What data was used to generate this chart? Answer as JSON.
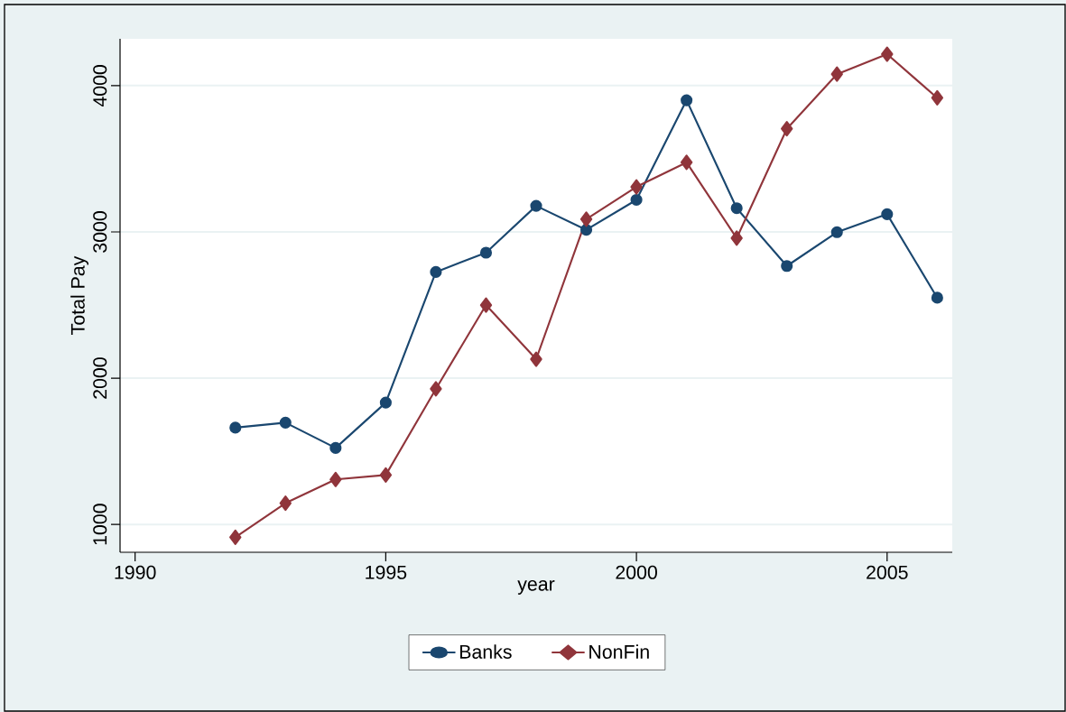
{
  "chart_data": {
    "type": "line",
    "xlabel": "year",
    "ylabel": "Total Pay",
    "x": [
      1992,
      1993,
      1994,
      1995,
      1996,
      1997,
      1998,
      1999,
      2000,
      2001,
      2002,
      2003,
      2004,
      2005,
      2006
    ],
    "series": [
      {
        "name": "Banks",
        "color": "#1a476f",
        "marker": "circle",
        "values": [
          1662,
          1696,
          1523,
          1833,
          2726,
          2858,
          3178,
          3014,
          3219,
          3900,
          3162,
          2767,
          2998,
          3121,
          2550
        ]
      },
      {
        "name": "NonFin",
        "color": "#90353b",
        "marker": "diamond",
        "values": [
          913,
          1146,
          1308,
          1338,
          1927,
          2500,
          2130,
          3087,
          3308,
          3475,
          2957,
          3705,
          4078,
          4215,
          3916
        ]
      }
    ],
    "xlim": [
      1989.7,
      2006.3
    ],
    "ylim": [
      810,
      4320
    ],
    "xticks": [
      1990,
      1995,
      2000,
      2005
    ],
    "yticks": [
      1000,
      2000,
      3000,
      4000
    ],
    "grid": "y",
    "legend": "bottom",
    "line_style": "solid"
  }
}
